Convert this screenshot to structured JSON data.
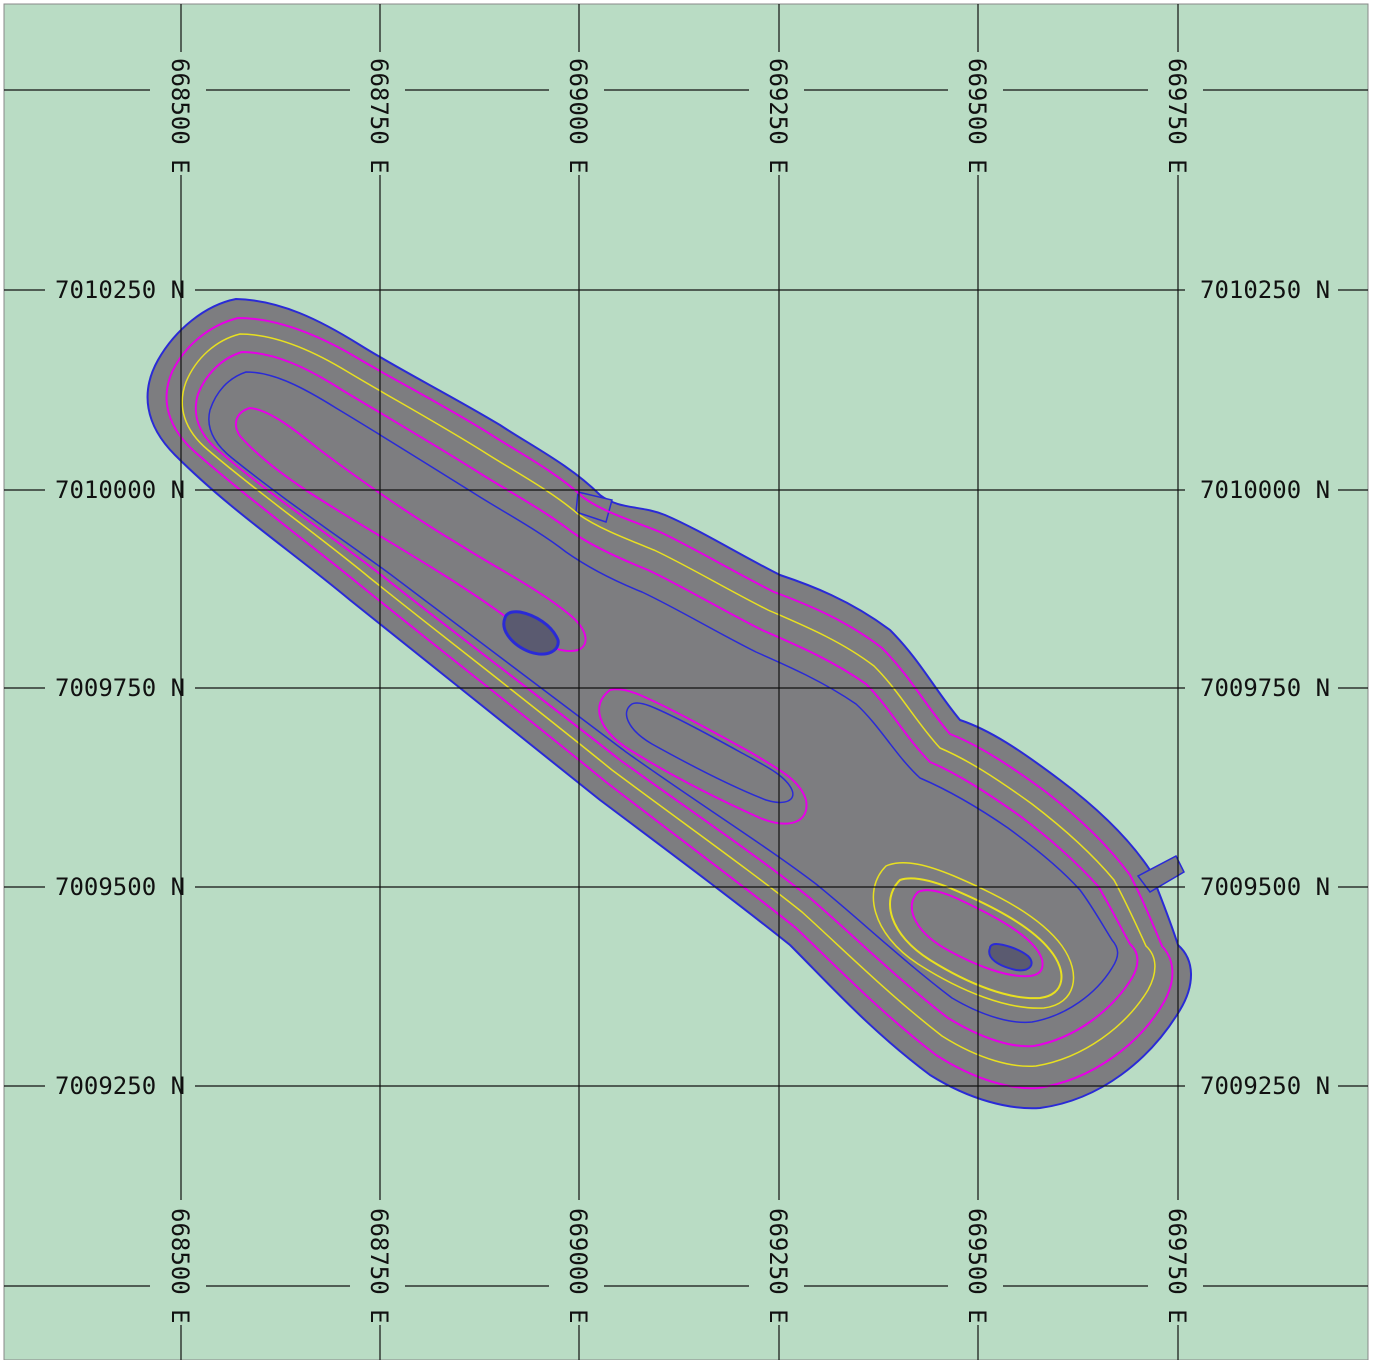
{
  "map": {
    "easting_labels": [
      "668500 E",
      "668750 E",
      "669000 E",
      "669250 E",
      "669500 E",
      "669750 E"
    ],
    "northing_labels": [
      "7010250 N",
      "7010000 N",
      "7009750 N",
      "7009500 N",
      "7009250 N"
    ],
    "colors": {
      "background": "#b9dcc4",
      "grid": "#111111",
      "pit_fill": "#7d7d80",
      "berm_line": "#e600e6",
      "toe_line": "#2a2ad6",
      "crest_line": "#e8e020"
    }
  }
}
